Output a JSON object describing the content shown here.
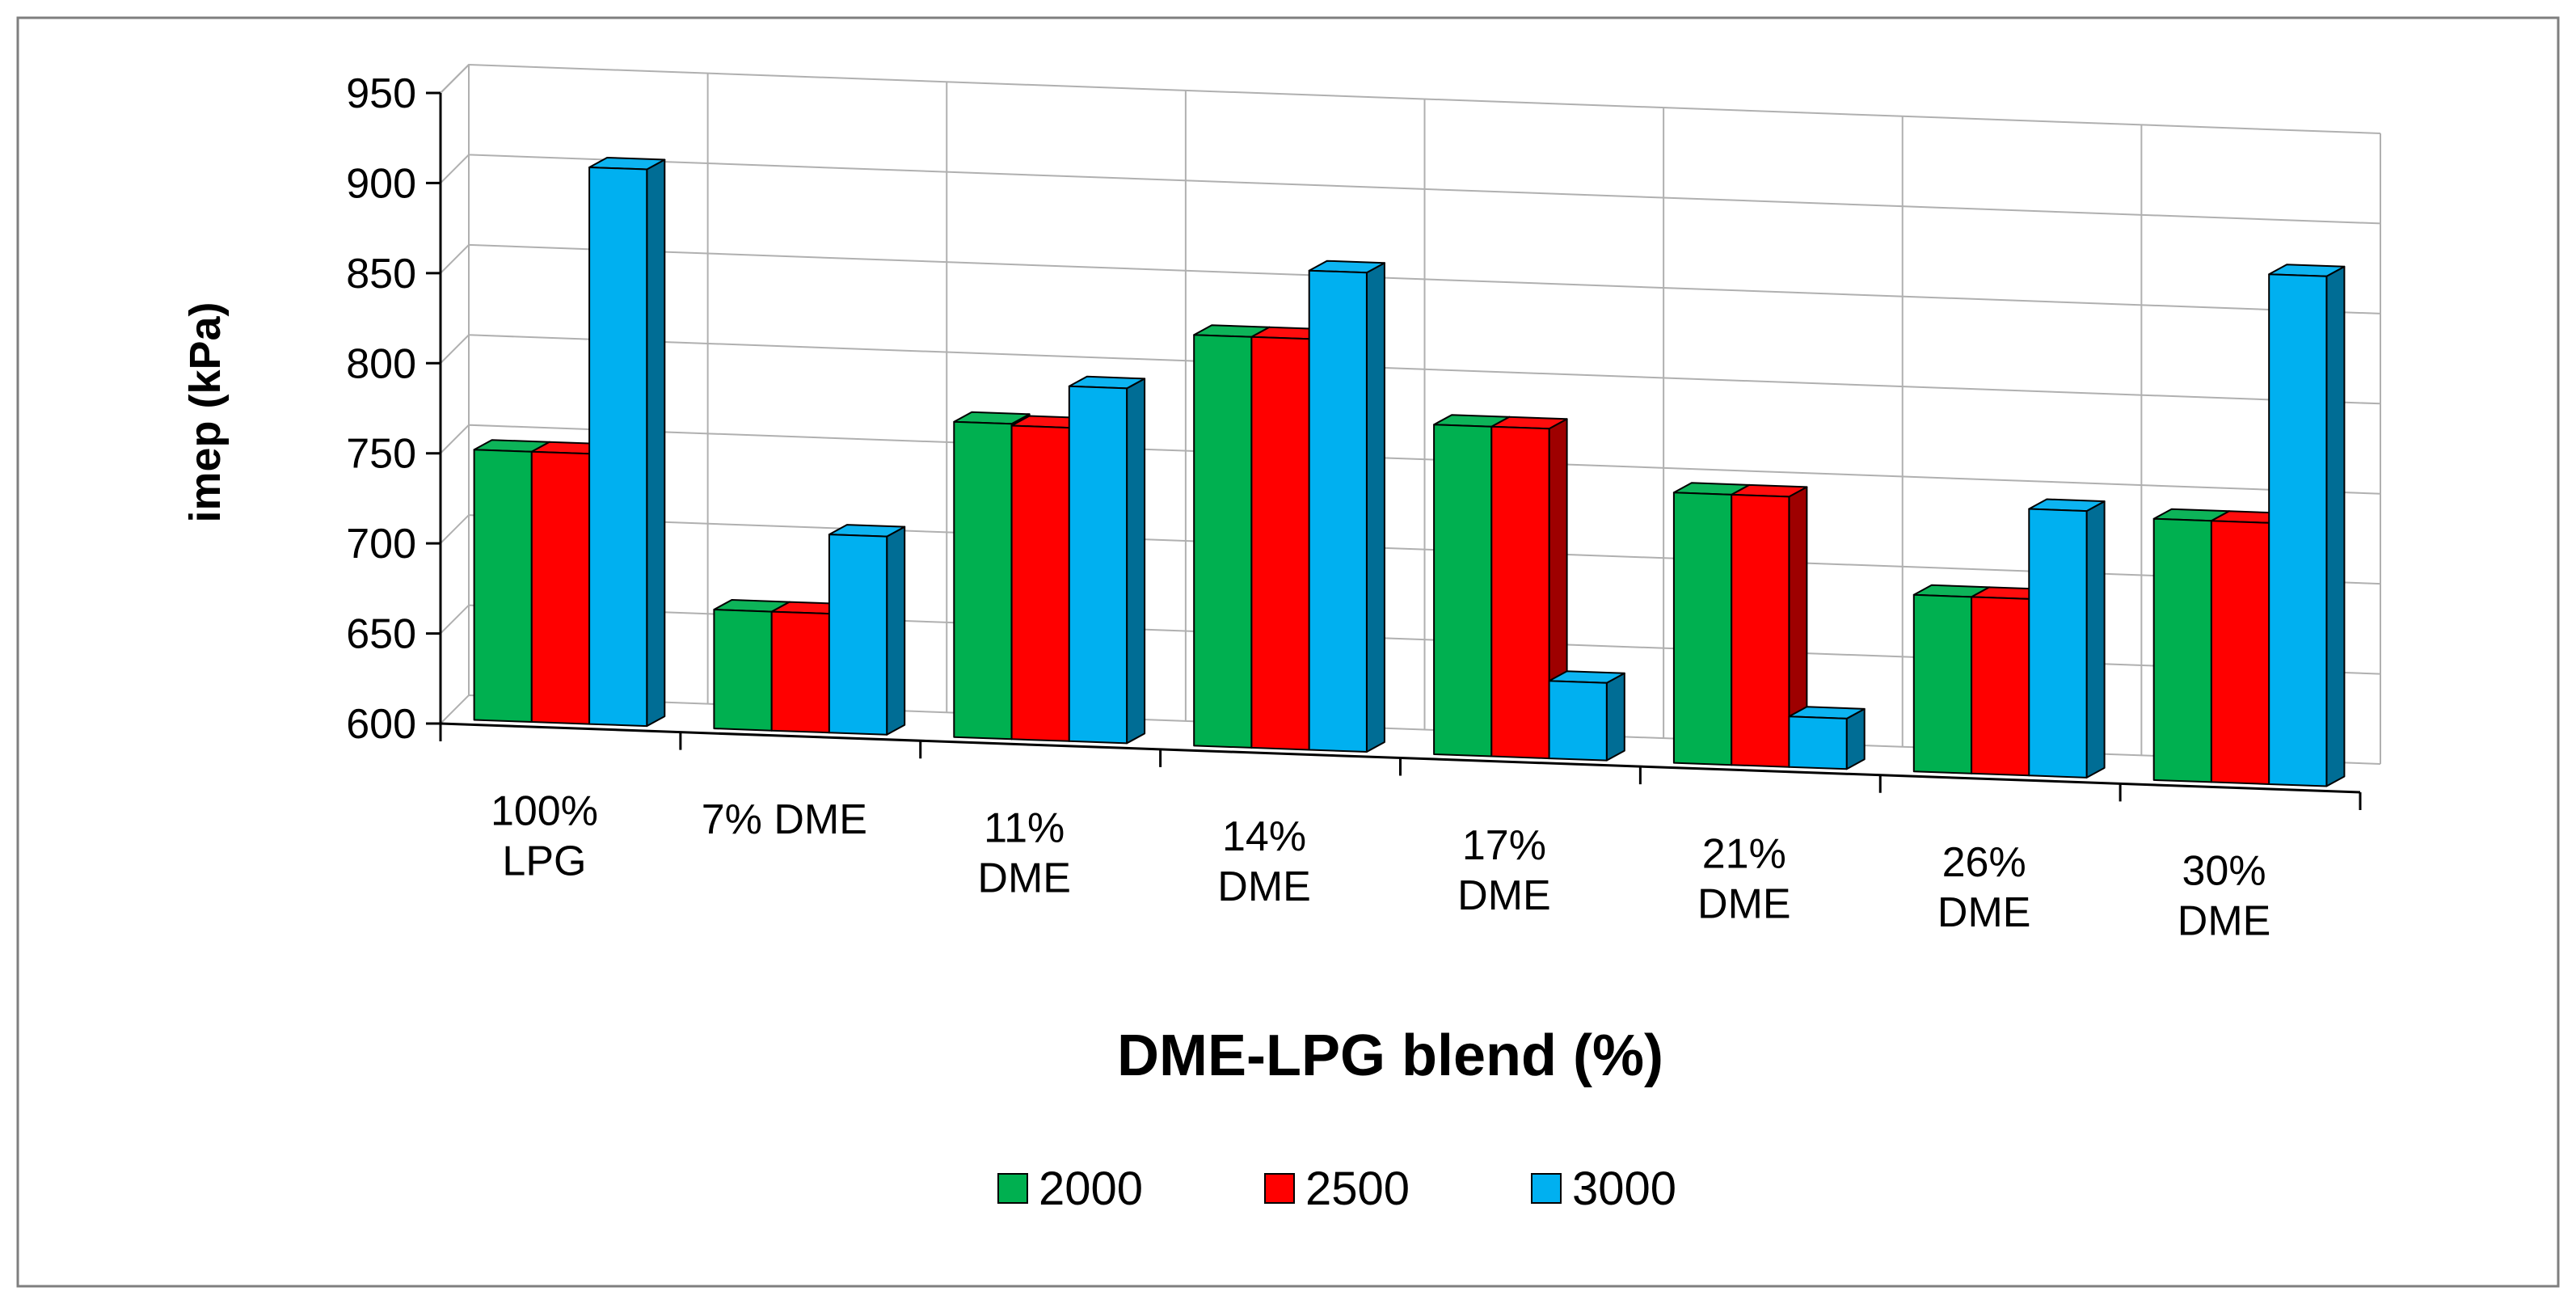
{
  "chart_data": {
    "type": "bar",
    "style": "3d-clustered-column",
    "title": "",
    "xlabel": "DME-LPG blend (%)",
    "ylabel": "imep (kPa)",
    "ylim": [
      600,
      950
    ],
    "yticks": [
      600,
      650,
      700,
      750,
      800,
      850,
      900,
      950
    ],
    "grid": true,
    "legend_position": "bottom",
    "categories": [
      [
        "100%",
        "LPG"
      ],
      [
        "7% DME"
      ],
      [
        "11%",
        "DME"
      ],
      [
        "14%",
        "DME"
      ],
      [
        "17%",
        "DME"
      ],
      [
        "21%",
        "DME"
      ],
      [
        "26%",
        "DME"
      ],
      [
        "30%",
        "DME"
      ]
    ],
    "series": [
      {
        "name": "2000",
        "color": "#00b050",
        "values": [
          750,
          666,
          775,
          828,
          783,
          750,
          698,
          745
        ]
      },
      {
        "name": "2500",
        "color": "#ff0000",
        "values": [
          750,
          666,
          774,
          828,
          783,
          750,
          698,
          745
        ]
      },
      {
        "name": "3000",
        "color": "#00b0f0",
        "values": [
          909,
          710,
          797,
          866,
          643,
          628,
          748,
          883
        ]
      }
    ]
  }
}
